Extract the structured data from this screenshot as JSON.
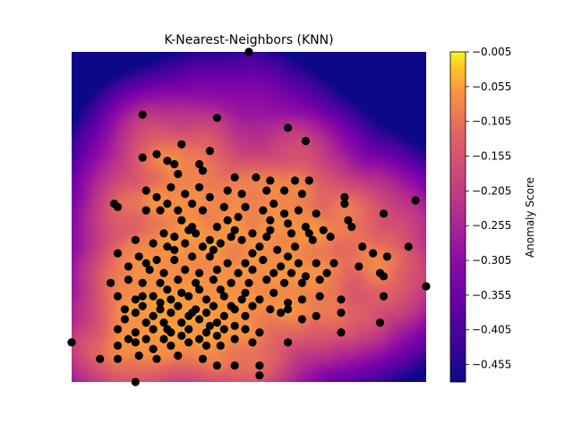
{
  "chart_data": {
    "type": "scatter",
    "title": "K-Nearest-Neighbors (KNN)",
    "xlabel": "",
    "ylabel": "",
    "xlim": [
      0,
      10
    ],
    "ylim": [
      0,
      10
    ],
    "grid": false,
    "legend": "none",
    "heatmap_background": {
      "description_of_field": "anomaly score per grid cell, high near dense points",
      "colormap": "plasma",
      "value_range": [
        -0.48,
        -0.005
      ]
    },
    "colorbar": {
      "label": "Anomaly Score",
      "ticks": [
        "-0.005",
        "-0.055",
        "-0.105",
        "-0.155",
        "-0.205",
        "-0.255",
        "-0.305",
        "-0.355",
        "-0.405",
        "-0.455"
      ],
      "tick_values": [
        -0.005,
        -0.055,
        -0.105,
        -0.155,
        -0.205,
        -0.255,
        -0.305,
        -0.355,
        -0.405,
        -0.455
      ],
      "range": [
        -0.48,
        -0.005
      ]
    },
    "point_color": "#000000",
    "points": [
      [
        5.0,
        10.0
      ],
      [
        2.0,
        8.1
      ],
      [
        4.1,
        8.0
      ],
      [
        6.1,
        7.7
      ],
      [
        6.6,
        7.3
      ],
      [
        3.1,
        7.2
      ],
      [
        3.9,
        7.0
      ],
      [
        2.0,
        6.8
      ],
      [
        2.4,
        6.9
      ],
      [
        2.7,
        6.7
      ],
      [
        2.9,
        6.6
      ],
      [
        3.6,
        6.6
      ],
      [
        4.6,
        6.2
      ],
      [
        5.2,
        6.2
      ],
      [
        5.6,
        6.1
      ],
      [
        6.3,
        6.1
      ],
      [
        6.7,
        6.1
      ],
      [
        1.2,
        5.4
      ],
      [
        1.3,
        5.3
      ],
      [
        2.1,
        5.2
      ],
      [
        2.5,
        5.2
      ],
      [
        3.0,
        5.2
      ],
      [
        3.4,
        5.4
      ],
      [
        3.7,
        5.2
      ],
      [
        4.3,
        5.3
      ],
      [
        4.9,
        5.3
      ],
      [
        5.4,
        5.2
      ],
      [
        6.0,
        5.1
      ],
      [
        6.4,
        5.2
      ],
      [
        6.9,
        5.1
      ],
      [
        7.7,
        5.6
      ],
      [
        7.7,
        5.4
      ],
      [
        7.8,
        4.9
      ],
      [
        8.8,
        5.1
      ],
      [
        9.7,
        5.5
      ],
      [
        3.1,
        4.9
      ],
      [
        3.4,
        4.7
      ],
      [
        4.1,
        4.7
      ],
      [
        4.6,
        4.6
      ],
      [
        5.6,
        4.6
      ],
      [
        6.1,
        4.8
      ],
      [
        6.6,
        4.7
      ],
      [
        7.1,
        4.6
      ],
      [
        7.9,
        4.7
      ],
      [
        8.9,
        3.8
      ],
      [
        1.8,
        4.3
      ],
      [
        2.3,
        4.2
      ],
      [
        2.7,
        4.1
      ],
      [
        3.2,
        4.2
      ],
      [
        3.7,
        4.1
      ],
      [
        4.2,
        4.2
      ],
      [
        4.8,
        4.3
      ],
      [
        5.3,
        4.1
      ],
      [
        5.8,
        4.0
      ],
      [
        6.3,
        4.1
      ],
      [
        6.8,
        4.3
      ],
      [
        7.3,
        4.4
      ],
      [
        8.2,
        4.1
      ],
      [
        8.5,
        3.9
      ],
      [
        9.5,
        4.1
      ],
      [
        1.3,
        3.9
      ],
      [
        1.9,
        3.8
      ],
      [
        2.4,
        3.7
      ],
      [
        2.9,
        3.7
      ],
      [
        3.4,
        3.8
      ],
      [
        3.9,
        3.8
      ],
      [
        4.4,
        3.6
      ],
      [
        4.9,
        3.6
      ],
      [
        5.4,
        3.7
      ],
      [
        5.9,
        3.5
      ],
      [
        6.4,
        3.6
      ],
      [
        6.9,
        3.6
      ],
      [
        7.2,
        3.3
      ],
      [
        7.4,
        3.6
      ],
      [
        8.1,
        3.5
      ],
      [
        8.7,
        3.3
      ],
      [
        1.1,
        3.0
      ],
      [
        1.6,
        3.1
      ],
      [
        2.0,
        3.0
      ],
      [
        2.5,
        3.0
      ],
      [
        3.0,
        3.1
      ],
      [
        3.5,
        3.0
      ],
      [
        4.0,
        3.1
      ],
      [
        4.5,
        3.0
      ],
      [
        5.0,
        3.0
      ],
      [
        5.5,
        3.1
      ],
      [
        6.0,
        3.0
      ],
      [
        6.5,
        3.0
      ],
      [
        7.0,
        3.1
      ],
      [
        8.8,
        3.2
      ],
      [
        10.0,
        2.9
      ],
      [
        1.3,
        2.6
      ],
      [
        1.8,
        2.5
      ],
      [
        2.3,
        2.6
      ],
      [
        2.8,
        2.5
      ],
      [
        3.3,
        2.6
      ],
      [
        3.8,
        2.5
      ],
      [
        4.3,
        2.6
      ],
      [
        4.8,
        2.5
      ],
      [
        5.3,
        2.5
      ],
      [
        6.1,
        2.4
      ],
      [
        6.5,
        2.5
      ],
      [
        7.0,
        2.6
      ],
      [
        7.6,
        2.5
      ],
      [
        8.8,
        2.6
      ],
      [
        1.8,
        2.1
      ],
      [
        2.3,
        2.0
      ],
      [
        2.8,
        2.1
      ],
      [
        3.3,
        2.0
      ],
      [
        3.8,
        2.1
      ],
      [
        4.3,
        2.0
      ],
      [
        4.9,
        2.0
      ],
      [
        5.9,
        2.1
      ],
      [
        6.1,
        2.2
      ],
      [
        6.5,
        1.9
      ],
      [
        6.9,
        2.0
      ],
      [
        7.6,
        2.1
      ],
      [
        8.7,
        1.8
      ],
      [
        1.3,
        1.6
      ],
      [
        1.8,
        1.5
      ],
      [
        2.3,
        1.6
      ],
      [
        2.8,
        1.5
      ],
      [
        3.3,
        1.6
      ],
      [
        3.8,
        1.5
      ],
      [
        4.3,
        1.6
      ],
      [
        5.3,
        1.5
      ],
      [
        7.6,
        1.5
      ],
      [
        0.0,
        1.2
      ],
      [
        1.3,
        1.1
      ],
      [
        1.8,
        1.2
      ],
      [
        2.3,
        1.0
      ],
      [
        2.8,
        1.1
      ],
      [
        3.3,
        1.2
      ],
      [
        3.8,
        1.1
      ],
      [
        4.2,
        1.1
      ],
      [
        5.1,
        1.2
      ],
      [
        6.1,
        1.2
      ],
      [
        0.8,
        0.7
      ],
      [
        1.3,
        0.7
      ],
      [
        1.9,
        0.8
      ],
      [
        2.4,
        0.7
      ],
      [
        3.0,
        0.8
      ],
      [
        3.7,
        0.7
      ],
      [
        4.1,
        0.5
      ],
      [
        4.6,
        0.5
      ],
      [
        5.3,
        0.5
      ],
      [
        1.8,
        0.0
      ],
      [
        5.3,
        0.2
      ],
      [
        2.1,
        5.8
      ],
      [
        2.4,
        5.6
      ],
      [
        2.8,
        5.9
      ],
      [
        3.2,
        5.7
      ],
      [
        3.6,
        5.9
      ],
      [
        3.9,
        5.6
      ],
      [
        4.4,
        5.8
      ],
      [
        4.8,
        5.7
      ],
      [
        5.5,
        5.8
      ],
      [
        6.0,
        5.8
      ],
      [
        6.5,
        5.7
      ],
      [
        2.6,
        4.5
      ],
      [
        2.9,
        4.4
      ],
      [
        3.5,
        4.5
      ],
      [
        3.9,
        4.3
      ],
      [
        4.5,
        4.4
      ],
      [
        5.1,
        4.5
      ],
      [
        5.5,
        4.4
      ],
      [
        6.2,
        4.5
      ],
      [
        6.7,
        4.5
      ],
      [
        2.2,
        3.4
      ],
      [
        2.6,
        3.3
      ],
      [
        3.2,
        3.4
      ],
      [
        3.6,
        3.3
      ],
      [
        4.1,
        3.4
      ],
      [
        4.7,
        3.3
      ],
      [
        5.1,
        3.4
      ],
      [
        5.7,
        3.3
      ],
      [
        6.2,
        3.3
      ],
      [
        6.6,
        3.2
      ],
      [
        1.5,
        2.2
      ],
      [
        2.0,
        2.3
      ],
      [
        2.5,
        2.2
      ],
      [
        3.0,
        2.3
      ],
      [
        3.5,
        2.2
      ],
      [
        4.0,
        2.3
      ],
      [
        4.6,
        2.2
      ],
      [
        5.1,
        2.3
      ],
      [
        5.6,
        2.2
      ],
      [
        1.5,
        1.9
      ],
      [
        2.1,
        1.8
      ],
      [
        2.6,
        1.8
      ],
      [
        3.1,
        1.8
      ],
      [
        3.6,
        1.9
      ],
      [
        4.1,
        1.8
      ],
      [
        4.6,
        1.7
      ],
      [
        1.6,
        1.3
      ],
      [
        2.1,
        1.3
      ],
      [
        2.6,
        1.3
      ],
      [
        3.1,
        1.4
      ],
      [
        3.6,
        1.3
      ],
      [
        4.1,
        1.4
      ],
      [
        4.6,
        1.3
      ],
      [
        5.6,
        4.9
      ],
      [
        4.4,
        4.9
      ],
      [
        3.0,
        6.3
      ],
      [
        3.7,
        6.4
      ],
      [
        2.7,
        5.4
      ],
      [
        4.7,
        5.0
      ],
      [
        5.7,
        5.4
      ],
      [
        3.3,
        4.6
      ],
      [
        4.0,
        4.0
      ],
      [
        2.9,
        4.0
      ],
      [
        5.1,
        3.9
      ],
      [
        6.1,
        3.8
      ],
      [
        2.1,
        3.6
      ],
      [
        1.6,
        3.5
      ],
      [
        2.7,
        2.8
      ],
      [
        3.6,
        2.8
      ],
      [
        4.2,
        2.8
      ],
      [
        4.9,
        2.7
      ],
      [
        5.7,
        2.7
      ],
      [
        2.0,
        2.6
      ],
      [
        2.5,
        2.4
      ],
      [
        3.1,
        2.7
      ],
      [
        4.5,
        2.3
      ],
      [
        3.4,
        2.1
      ],
      [
        2.7,
        1.6
      ],
      [
        3.9,
        1.7
      ],
      [
        4.9,
        1.6
      ]
    ]
  }
}
